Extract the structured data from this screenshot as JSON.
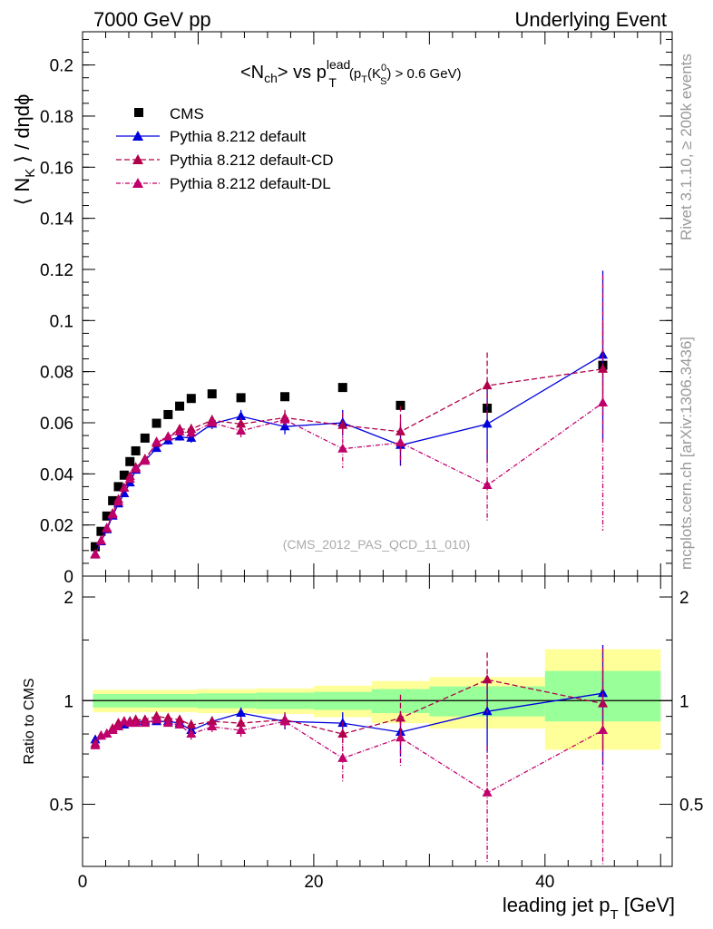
{
  "header": {
    "left": "7000 GeV pp",
    "right": "Underlying Event"
  },
  "side_labels": {
    "rivet": "Rivet 3.1.10, ≥ 200k events",
    "mcplots": "mcplots.cern.ch [arXiv:1306.3436]"
  },
  "plot_title": {
    "prefix": "<N",
    "sub_ch": "ch",
    "mid": "> vs p",
    "sup_lead": "lead",
    "sub_T": "T",
    "cut_open": "(p",
    "cut_T": "T",
    "cut_K": "(K",
    "cut_K_sup": "0",
    "cut_K_sub": "S",
    "cut_close": ") > 0.6 GeV)"
  },
  "watermark": "(CMS_2012_PAS_QCD_11_010)",
  "colors": {
    "cms": "#000000",
    "default": "#0000dd",
    "cd": "#b0004a",
    "dl": "#c0006a",
    "band_yellow": "#ffff99",
    "band_green": "#99ff99"
  },
  "chart_data": [
    {
      "type": "scatter",
      "panel": "main",
      "ylabel": {
        "part1": "⟨ N",
        "sub": "K",
        "part2": " ⟩ / dηdϕ"
      },
      "xlim": [
        0,
        51
      ],
      "ylim": [
        0,
        0.213
      ],
      "yticks": [
        0,
        0.02,
        0.04,
        0.06,
        0.08,
        0.1,
        0.12,
        0.14,
        0.16,
        0.18,
        0.2
      ],
      "ytick_labels": [
        "0",
        "0.02",
        "0.04",
        "0.06",
        "0.08",
        "0.1",
        "0.12",
        "0.14",
        "0.16",
        "0.18",
        "0.2"
      ],
      "legend": [
        "CMS",
        "Pythia 8.212 default",
        "Pythia 8.212 default-CD",
        "Pythia 8.212 default-DL"
      ],
      "series": [
        {
          "name": "CMS",
          "style": "square",
          "x": [
            1.1,
            1.6,
            2.1,
            2.6,
            3.1,
            3.6,
            4.1,
            4.6,
            5.4,
            6.4,
            7.4,
            8.4,
            9.4,
            11.2,
            13.7,
            17.5,
            22.5,
            27.5,
            35,
            45
          ],
          "y": [
            0.0115,
            0.0175,
            0.0235,
            0.0295,
            0.035,
            0.0395,
            0.0448,
            0.049,
            0.054,
            0.0598,
            0.0632,
            0.0665,
            0.0695,
            0.0713,
            0.0698,
            0.0702,
            0.0738,
            0.0668,
            0.0657,
            0.0825
          ]
        },
        {
          "name": "Pythia 8.212 default",
          "style": "solid",
          "x": [
            1.1,
            1.6,
            2.1,
            2.6,
            3.1,
            3.6,
            4.1,
            4.6,
            5.4,
            6.4,
            7.4,
            8.4,
            9.4,
            11.2,
            13.7,
            17.5,
            22.5,
            27.5,
            35,
            45
          ],
          "y": [
            0.0085,
            0.0135,
            0.0182,
            0.0235,
            0.0283,
            0.0323,
            0.0365,
            0.0415,
            0.0452,
            0.05,
            0.053,
            0.0545,
            0.054,
            0.0595,
            0.0625,
            0.0585,
            0.06,
            0.0512,
            0.0595,
            0.0865
          ],
          "err": [
            0.0008,
            0.0008,
            0.0008,
            0.0008,
            0.0008,
            0.0008,
            0.0008,
            0.0008,
            0.001,
            0.0012,
            0.0015,
            0.0015,
            0.0018,
            0.002,
            0.0025,
            0.003,
            0.005,
            0.008,
            0.015,
            0.033
          ]
        },
        {
          "name": "Pythia 8.212 default-CD",
          "style": "dashed",
          "x": [
            1.1,
            1.6,
            2.1,
            2.6,
            3.1,
            3.6,
            4.1,
            4.6,
            5.4,
            6.4,
            7.4,
            8.4,
            9.4,
            11.2,
            13.7,
            17.5,
            22.5,
            27.5,
            35,
            45
          ],
          "y": [
            0.0085,
            0.0138,
            0.0185,
            0.0245,
            0.03,
            0.0345,
            0.039,
            0.0425,
            0.0458,
            0.052,
            0.0545,
            0.0575,
            0.0575,
            0.061,
            0.0595,
            0.062,
            0.059,
            0.0565,
            0.0745,
            0.081
          ],
          "err": [
            0.0008,
            0.0008,
            0.0008,
            0.0008,
            0.0008,
            0.0008,
            0.0008,
            0.0008,
            0.001,
            0.0012,
            0.0015,
            0.0018,
            0.002,
            0.002,
            0.0025,
            0.003,
            0.005,
            0.01,
            0.013,
            0.018
          ]
        },
        {
          "name": "Pythia 8.212 default-DL",
          "style": "dotted",
          "x": [
            1.1,
            1.6,
            2.1,
            2.6,
            3.1,
            3.6,
            4.1,
            4.6,
            5.4,
            6.4,
            7.4,
            8.4,
            9.4,
            11.2,
            13.7,
            17.5,
            22.5,
            27.5,
            35,
            45
          ],
          "y": [
            0.0083,
            0.0138,
            0.0188,
            0.024,
            0.029,
            0.0345,
            0.038,
            0.042,
            0.045,
            0.0525,
            0.0545,
            0.0565,
            0.056,
            0.06,
            0.0568,
            0.0612,
            0.0498,
            0.0522,
            0.0355,
            0.0678
          ],
          "err": [
            0.0008,
            0.0008,
            0.0008,
            0.0008,
            0.0008,
            0.0008,
            0.0008,
            0.0008,
            0.001,
            0.0012,
            0.0015,
            0.0018,
            0.002,
            0.002,
            0.0025,
            0.003,
            0.0075,
            0.009,
            0.014,
            0.05
          ]
        }
      ]
    },
    {
      "type": "scatter",
      "panel": "ratio",
      "ylabel": "Ratio to CMS",
      "xlabel": {
        "main": "leading jet p",
        "sub": "T",
        "unit": " [GeV]"
      },
      "xlim": [
        0,
        51
      ],
      "ylim": [
        0.33,
        2.3
      ],
      "xticks": [
        0,
        20,
        40
      ],
      "xtick_labels": [
        "0",
        "20",
        "40"
      ],
      "yticks": [
        0.5,
        1,
        2
      ],
      "ytick_labels": [
        "0.5",
        "1",
        "2"
      ],
      "bands": [
        {
          "x0": 0.9,
          "x1": 9.9,
          "y_lo": 0.925,
          "y_hi": 1.075,
          "g_lo": 0.955,
          "g_hi": 1.045
        },
        {
          "x0": 9.9,
          "x1": 15,
          "y_lo": 0.92,
          "y_hi": 1.08,
          "g_lo": 0.95,
          "g_hi": 1.05
        },
        {
          "x0": 15,
          "x1": 20,
          "y_lo": 0.915,
          "y_hi": 1.085,
          "g_lo": 0.945,
          "g_hi": 1.055
        },
        {
          "x0": 20,
          "x1": 25,
          "y_lo": 0.895,
          "y_hi": 1.105,
          "g_lo": 0.94,
          "g_hi": 1.06
        },
        {
          "x0": 25,
          "x1": 30,
          "y_lo": 0.86,
          "y_hi": 1.14,
          "g_lo": 0.92,
          "g_hi": 1.08
        },
        {
          "x0": 30,
          "x1": 40,
          "y_lo": 0.83,
          "y_hi": 1.17,
          "g_lo": 0.9,
          "g_hi": 1.1
        },
        {
          "x0": 40,
          "x1": 50,
          "y_lo": 0.72,
          "y_hi": 1.41,
          "g_lo": 0.87,
          "g_hi": 1.22
        }
      ],
      "series": [
        {
          "name": "Pythia 8.212 default",
          "x": [
            1.1,
            1.6,
            2.1,
            2.6,
            3.1,
            3.6,
            4.1,
            4.6,
            5.4,
            6.4,
            7.4,
            8.4,
            9.4,
            11.2,
            13.7,
            17.5,
            22.5,
            27.5,
            35,
            45
          ],
          "y": [
            0.77,
            0.79,
            0.8,
            0.82,
            0.84,
            0.85,
            0.87,
            0.87,
            0.87,
            0.87,
            0.87,
            0.86,
            0.82,
            0.87,
            0.92,
            0.87,
            0.86,
            0.81,
            0.93,
            1.05
          ],
          "err": [
            0.02,
            0.02,
            0.02,
            0.02,
            0.02,
            0.02,
            0.02,
            0.02,
            0.02,
            0.02,
            0.025,
            0.025,
            0.025,
            0.03,
            0.035,
            0.045,
            0.065,
            0.12,
            0.22,
            0.4
          ]
        },
        {
          "name": "Pythia 8.212 default-CD",
          "x": [
            1.1,
            1.6,
            2.1,
            2.6,
            3.1,
            3.6,
            4.1,
            4.6,
            5.4,
            6.4,
            7.4,
            8.4,
            9.4,
            11.2,
            13.7,
            17.5,
            22.5,
            27.5,
            35,
            45
          ],
          "y": [
            0.75,
            0.79,
            0.8,
            0.83,
            0.86,
            0.87,
            0.87,
            0.88,
            0.88,
            0.9,
            0.89,
            0.88,
            0.85,
            0.87,
            0.86,
            0.88,
            0.8,
            0.89,
            1.15,
            0.98
          ],
          "err": [
            0.02,
            0.02,
            0.02,
            0.02,
            0.02,
            0.02,
            0.02,
            0.02,
            0.02,
            0.025,
            0.025,
            0.025,
            0.03,
            0.03,
            0.035,
            0.045,
            0.07,
            0.15,
            0.23,
            0.25
          ]
        },
        {
          "name": "Pythia 8.212 default-DL",
          "x": [
            1.1,
            1.6,
            2.1,
            2.6,
            3.1,
            3.6,
            4.1,
            4.6,
            5.4,
            6.4,
            7.4,
            8.4,
            9.4,
            11.2,
            13.7,
            17.5,
            22.5,
            27.5,
            35,
            45
          ],
          "y": [
            0.74,
            0.79,
            0.8,
            0.82,
            0.84,
            0.87,
            0.86,
            0.86,
            0.86,
            0.88,
            0.86,
            0.85,
            0.8,
            0.84,
            0.82,
            0.87,
            0.68,
            0.78,
            0.54,
            0.82
          ],
          "err": [
            0.02,
            0.02,
            0.02,
            0.02,
            0.02,
            0.02,
            0.02,
            0.02,
            0.02,
            0.025,
            0.025,
            0.025,
            0.03,
            0.03,
            0.035,
            0.045,
            0.1,
            0.14,
            0.2,
            0.6
          ]
        }
      ]
    }
  ]
}
